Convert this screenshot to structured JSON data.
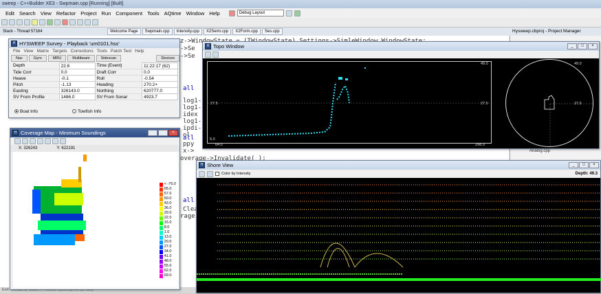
{
  "ide": {
    "title": "sweep - C++Builder XE3 - Swpmain.cpp [Running] [Built]",
    "menu": [
      "Edit",
      "Search",
      "View",
      "Refactor",
      "Project",
      "Run",
      "Component",
      "Tools",
      "AQtime",
      "Window",
      "Help"
    ],
    "layout_combo": "Debug Layout",
    "thread": "Stack - Thread 57164",
    "tabs": [
      "Welcome Page",
      "Swpmain.cpp",
      "Intensity.cpp",
      "X2Semi.cpp",
      "X2Form.cpp",
      "Ses.cpp"
    ],
    "project_manager_title": "Hysweep.cbproj - Project Manager",
    "project_tree": [
      "Analog.cpp"
    ],
    "status": "Exit: Thread ID: 56924. Process Hysweep.exe (57028)",
    "code_lines": [
      "z->WindowState = (TWindowState) Settings->SimleWindow.WindowState;",
      "->Se",
      "->Se",
      "all",
      "log1-",
      "log1-",
      "idex",
      "log1-",
      "ipdi-",
      "ol",
      "all",
      "ppy",
      "x-> ",
      "overage->Invalidate( );",
      "all",
      "Clea",
      "rage-"
    ]
  },
  "survey": {
    "title": "HYSWEEP Survey - Playback 'um0101.hsx'",
    "menu": [
      "File",
      "View",
      "Matrix",
      "Targets",
      "Corrections",
      "Tools",
      "Patch Test",
      "Help"
    ],
    "tabs": [
      "Nav",
      "Gyro",
      "MRU",
      "Multibeam",
      "Sidescan",
      "Devices"
    ],
    "rows": [
      {
        "l1": "Depth",
        "v1": "22.6",
        "l2": "Time (Event)",
        "v2": "11:22:17 (62)"
      },
      {
        "l1": "Tide Corr",
        "v1": "0.0",
        "l2": "Draft Corr",
        "v2": "0.0"
      },
      {
        "l1": "Heave",
        "v1": "-0.1",
        "l2": "Roll",
        "v2": "-0.54"
      },
      {
        "l1": "Pitch",
        "v1": "-1.13",
        "l2": "Heading",
        "v2": "270.2+"
      },
      {
        "l1": "Easting",
        "v1": "326143.0",
        "l2": "Northing",
        "v2": "620777.0"
      },
      {
        "l1": "SV From Profile",
        "v1": "1486.0",
        "l2": "SV From Sonar",
        "v2": "4923.7"
      }
    ],
    "opt_boat": "Boat Info",
    "opt_towfish": "Towfish Info"
  },
  "coverage": {
    "title": "Coverage Map - Minimum Soundings",
    "x_coord": "X: 326243",
    "y_coord": "Y: 622191",
    "legend": [
      {
        "label": "< -76.0",
        "color": "#ff0000"
      },
      {
        "label": "65.0",
        "color": "#ff3300"
      },
      {
        "label": "57.0",
        "color": "#ff6600"
      },
      {
        "label": "50.0",
        "color": "#ff9900"
      },
      {
        "label": "43.0",
        "color": "#ffcc00"
      },
      {
        "label": "36.0",
        "color": "#ffff00"
      },
      {
        "label": "29.0",
        "color": "#ccff00"
      },
      {
        "label": "22.0",
        "color": "#66ff00"
      },
      {
        "label": "15.0",
        "color": "#00ff00"
      },
      {
        "label": "8.0",
        "color": "#00ff66"
      },
      {
        "label": "1.0",
        "color": "#00ffcc"
      },
      {
        "label": "13.0",
        "color": "#00ccff"
      },
      {
        "label": "20.0",
        "color": "#0099ff"
      },
      {
        "label": "27.0",
        "color": "#0055ff"
      },
      {
        "label": "34.0",
        "color": "#0000ff"
      },
      {
        "label": "41.0",
        "color": "#6600ff"
      },
      {
        "label": "48.0",
        "color": "#9900ff"
      },
      {
        "label": "55.0",
        "color": "#cc00ff"
      },
      {
        "label": "62.0",
        "color": "#ff00ff"
      },
      {
        "label": "69.0",
        "color": "#ff00cc"
      }
    ]
  },
  "topo": {
    "title": "Topo Window",
    "y_top": "49.0",
    "y_mid": "27.5",
    "y_bottom": "6.0",
    "x_left": "64.0",
    "x_right": "298.0",
    "ring_top": "49.0",
    "ring_mid": "27.5"
  },
  "shore": {
    "title": "Shore View",
    "color_by": "Color by Intensity",
    "depth": "Depth: 49.3"
  },
  "colors": {
    "window_title": "#c5d5e9",
    "sounding_cyan": "#33e0f0",
    "accent_red": "#d9534f"
  }
}
